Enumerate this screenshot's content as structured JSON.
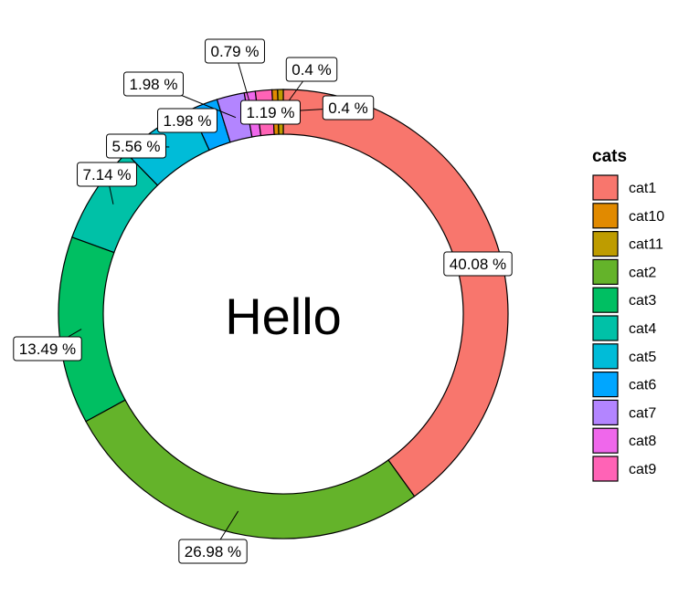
{
  "chart_data": {
    "type": "pie",
    "variant": "donut",
    "center_text": "Hello",
    "legend": {
      "title": "cats",
      "placement": "right"
    },
    "grid": false,
    "slices": [
      {
        "category": "cat1",
        "value": 40.08,
        "label": "40.08 %",
        "color": "#F8766D"
      },
      {
        "category": "cat2",
        "value": 26.98,
        "label": "26.98 %",
        "color": "#64B32A"
      },
      {
        "category": "cat3",
        "value": 13.49,
        "label": "13.49 %",
        "color": "#00BF62"
      },
      {
        "category": "cat4",
        "value": 7.14,
        "label": "7.14 %",
        "color": "#00C1A7"
      },
      {
        "category": "cat5",
        "value": 5.56,
        "label": "5.56 %",
        "color": "#00BCD8"
      },
      {
        "category": "cat6",
        "value": 1.98,
        "label": "1.98 %",
        "color": "#00A6FF"
      },
      {
        "category": "cat7",
        "value": 1.98,
        "label": "1.98 %",
        "color": "#B385FF"
      },
      {
        "category": "cat8",
        "value": 0.79,
        "label": "0.79 %",
        "color": "#EF67EB"
      },
      {
        "category": "cat9",
        "value": 1.19,
        "label": "1.19 %",
        "color": "#FF63B6"
      },
      {
        "category": "cat10",
        "value": 0.4,
        "label": "0.4 %",
        "color": "#E18A00"
      },
      {
        "category": "cat11",
        "value": 0.4,
        "label": "0.4 %",
        "color": "#BE9C00"
      }
    ],
    "legend_order": [
      "cat1",
      "cat10",
      "cat11",
      "cat2",
      "cat3",
      "cat4",
      "cat5",
      "cat6",
      "cat7",
      "cat8",
      "cat9"
    ]
  }
}
